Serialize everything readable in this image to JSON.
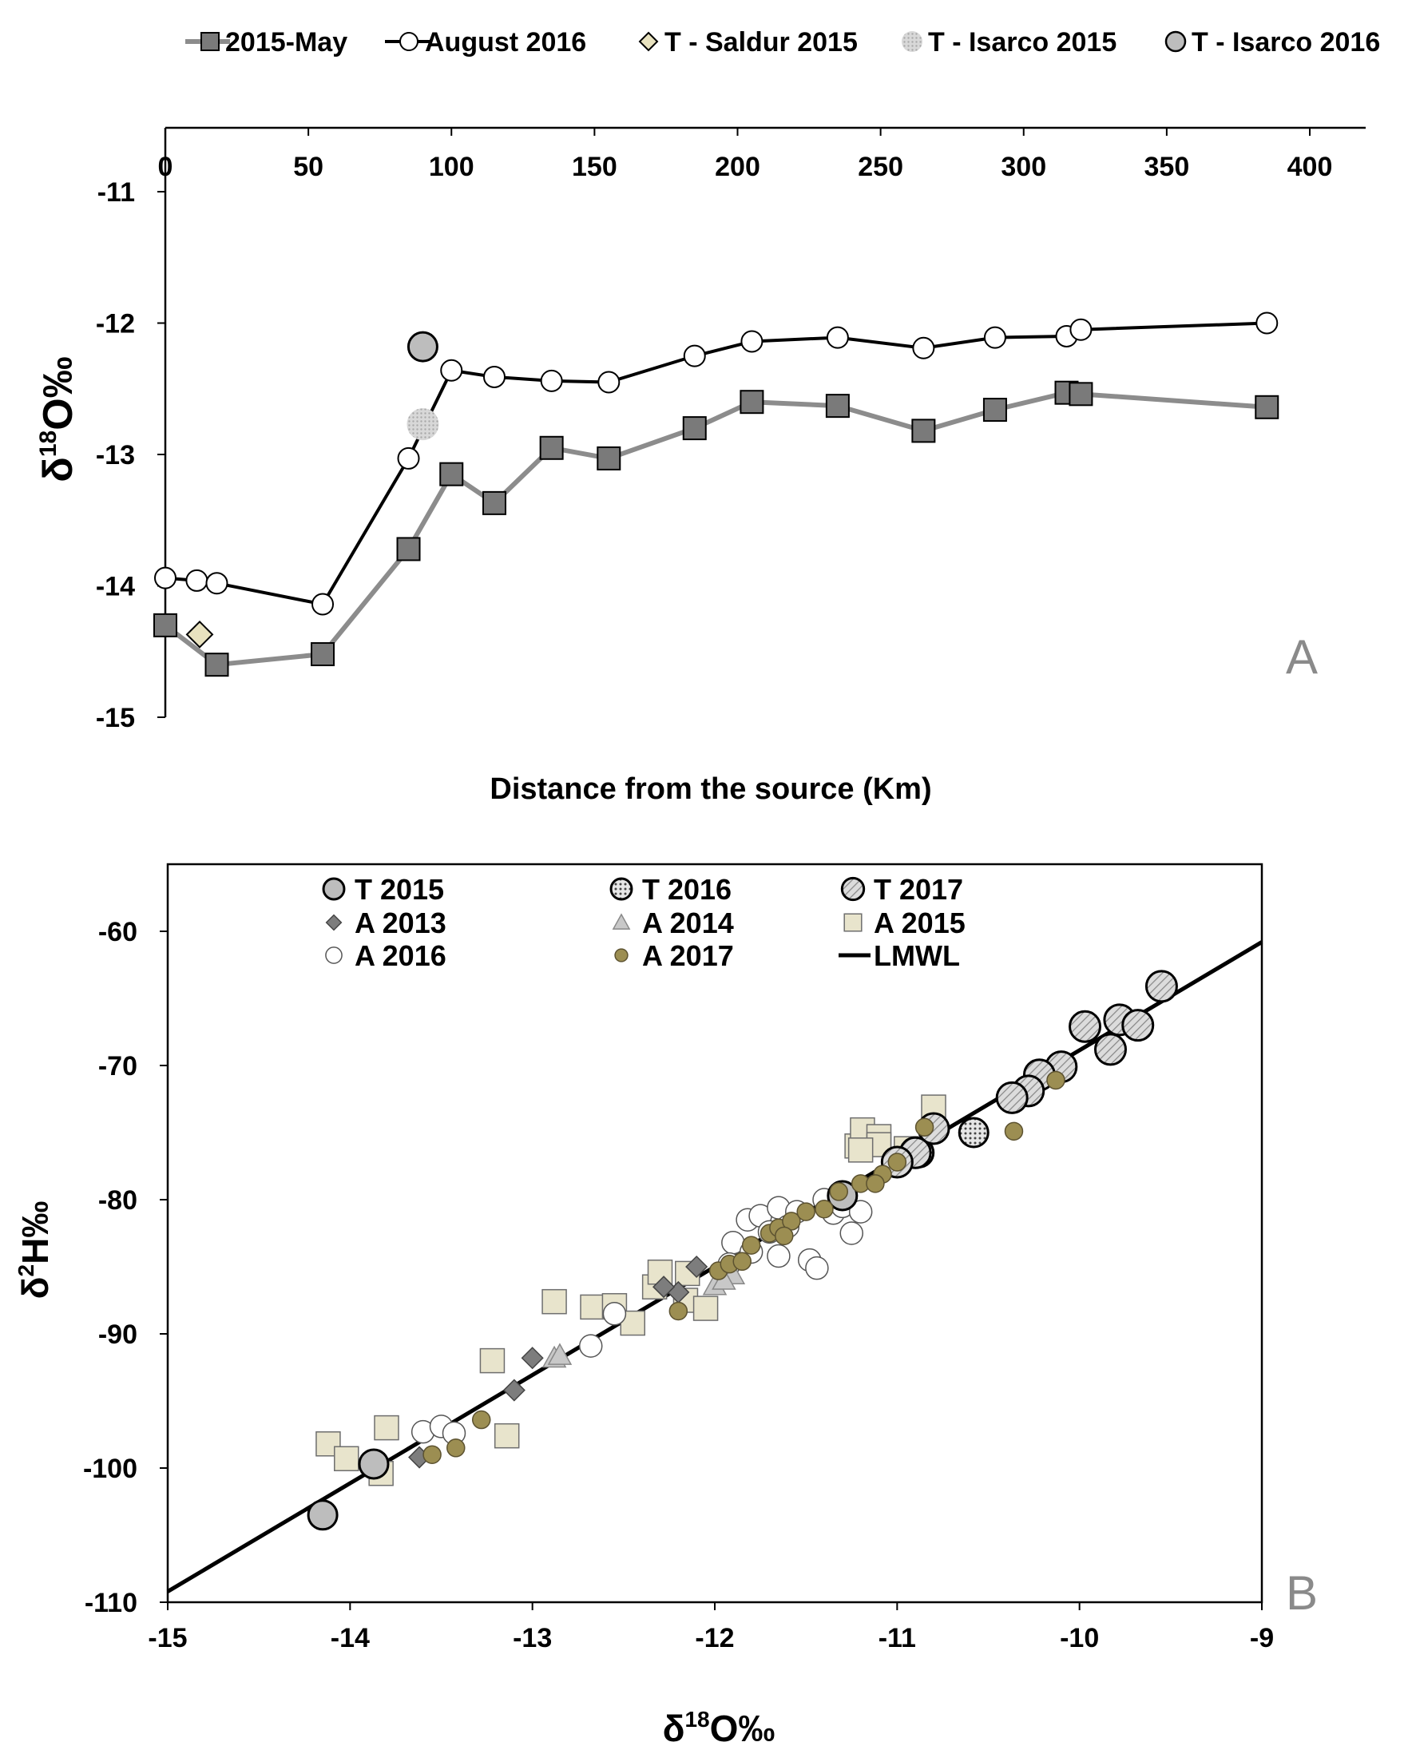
{
  "chart_data": [
    {
      "type": "line",
      "panel_label": "A",
      "title": "",
      "xlabel": "Distance from the source (Km)",
      "ylabel_main": "δ",
      "ylabel_sup": "18",
      "ylabel_rest": "O‰",
      "xlim": [
        0,
        400
      ],
      "ylim": [
        -15,
        -10.6
      ],
      "xticks": [
        0,
        50,
        100,
        150,
        200,
        250,
        300,
        350,
        400
      ],
      "yticks": [
        -15,
        -14,
        -13,
        -12,
        -11
      ],
      "x_axis_position": "top",
      "legend": [
        {
          "label": "2015-May",
          "marker": "square-line",
          "color": "#7a7a7a"
        },
        {
          "label": "August 2016",
          "marker": "circle-line",
          "color": "#000000"
        },
        {
          "label": "T - Saldur 2015",
          "marker": "diamond",
          "color": "#e8e2bf"
        },
        {
          "label": "T - Isarco 2015",
          "marker": "circle-dotted",
          "color": "#c8c8c8"
        },
        {
          "label": "T - Isarco 2016",
          "marker": "circle",
          "color": "#bdbdbd"
        }
      ],
      "series": [
        {
          "name": "2015-May",
          "x": [
            0,
            18,
            55,
            85,
            100,
            115,
            135,
            155,
            185,
            205,
            235,
            265,
            290,
            315,
            320,
            385
          ],
          "y": [
            -14.3,
            -14.6,
            -14.52,
            -13.72,
            -13.15,
            -13.37,
            -12.95,
            -13.03,
            -12.8,
            -12.6,
            -12.63,
            -12.82,
            -12.66,
            -12.53,
            -12.54,
            -12.64
          ]
        },
        {
          "name": "August 2016",
          "x": [
            0,
            11,
            18,
            55,
            85,
            100,
            115,
            135,
            155,
            185,
            205,
            235,
            265,
            290,
            315,
            320,
            385
          ],
          "y": [
            -13.94,
            -13.96,
            -13.98,
            -14.14,
            -13.03,
            -12.36,
            -12.41,
            -12.44,
            -12.45,
            -12.25,
            -12.14,
            -12.11,
            -12.19,
            -12.11,
            -12.1,
            -12.05,
            -12.0
          ]
        },
        {
          "name": "T - Saldur 2015",
          "x": [
            12
          ],
          "y": [
            -14.37
          ]
        },
        {
          "name": "T - Isarco 2015",
          "x": [
            90
          ],
          "y": [
            -12.77
          ]
        },
        {
          "name": "T - Isarco 2016",
          "x": [
            90
          ],
          "y": [
            -12.18
          ]
        }
      ]
    },
    {
      "type": "scatter",
      "panel_label": "B",
      "title": "",
      "xlabel_main": "δ",
      "xlabel_sup": "18",
      "xlabel_rest": "O‰",
      "ylabel_main": "δ",
      "ylabel_sup": "2",
      "ylabel_rest": "H‰",
      "xlim": [
        -15,
        -9
      ],
      "ylim": [
        -110,
        -55
      ],
      "xticks": [
        -15,
        -14,
        -13,
        -12,
        -11,
        -10,
        -9
      ],
      "yticks": [
        -110,
        -100,
        -90,
        -80,
        -70,
        -60
      ],
      "legend": [
        {
          "label": "T 2015",
          "marker": "big-circle-gray"
        },
        {
          "label": "T 2016",
          "marker": "big-circle-dotted"
        },
        {
          "label": "T 2017",
          "marker": "big-circle-hatched"
        },
        {
          "label": "A 2013",
          "marker": "diamond-gray"
        },
        {
          "label": "A 2014",
          "marker": "triangle-gray"
        },
        {
          "label": "A 2015",
          "marker": "square-beige"
        },
        {
          "label": "A 2016",
          "marker": "circle-white"
        },
        {
          "label": "A 2017",
          "marker": "circle-olive"
        },
        {
          "label": "LMWL",
          "marker": "line"
        }
      ],
      "lmwl": {
        "x": [
          -15,
          -9
        ],
        "y": [
          -109.2,
          -60.8
        ]
      },
      "series": [
        {
          "name": "T 2015",
          "points": [
            [
              -14.15,
              -103.5
            ],
            [
              -13.87,
              -99.7
            ],
            [
              -11.3,
              -79.7
            ],
            [
              -11.0,
              -77.2
            ]
          ]
        },
        {
          "name": "T 2016",
          "points": [
            [
              -10.58,
              -75.0
            ],
            [
              -10.88,
              -76.5
            ]
          ]
        },
        {
          "name": "T 2017",
          "points": [
            [
              -9.55,
              -64.1
            ],
            [
              -9.78,
              -66.6
            ],
            [
              -9.68,
              -67.0
            ],
            [
              -9.97,
              -67.1
            ],
            [
              -9.83,
              -68.8
            ],
            [
              -10.1,
              -70.1
            ],
            [
              -10.22,
              -70.7
            ],
            [
              -10.28,
              -71.9
            ],
            [
              -10.37,
              -72.4
            ],
            [
              -10.8,
              -74.7
            ],
            [
              -10.9,
              -76.5
            ],
            [
              -11.0,
              -77.2
            ]
          ]
        },
        {
          "name": "A 2013",
          "points": [
            [
              -13.62,
              -99.2
            ],
            [
              -13.1,
              -94.2
            ],
            [
              -13.0,
              -91.8
            ],
            [
              -12.2,
              -86.9
            ],
            [
              -12.1,
              -85.0
            ],
            [
              -12.28,
              -86.5
            ]
          ]
        },
        {
          "name": "A 2014",
          "points": [
            [
              -12.88,
              -91.8
            ],
            [
              -12.85,
              -91.6
            ],
            [
              -12.0,
              -86.4
            ],
            [
              -11.9,
              -85.6
            ],
            [
              -11.95,
              -86.0
            ]
          ]
        },
        {
          "name": "A 2015",
          "points": [
            [
              -14.12,
              -98.2
            ],
            [
              -14.02,
              -99.3
            ],
            [
              -13.8,
              -97.0
            ],
            [
              -13.83,
              -100.4
            ],
            [
              -13.22,
              -92.0
            ],
            [
              -13.14,
              -97.6
            ],
            [
              -12.88,
              -87.6
            ],
            [
              -12.67,
              -88.0
            ],
            [
              -12.55,
              -87.9
            ],
            [
              -12.45,
              -89.2
            ],
            [
              -12.33,
              -86.5
            ],
            [
              -12.3,
              -85.4
            ],
            [
              -12.16,
              -87.5
            ],
            [
              -12.15,
              -85.5
            ],
            [
              -12.05,
              -88.1
            ],
            [
              -11.22,
              -76.0
            ],
            [
              -11.19,
              -74.8
            ],
            [
              -11.1,
              -75.3
            ],
            [
              -11.1,
              -75.9
            ],
            [
              -10.95,
              -76.2
            ],
            [
              -10.8,
              -73.1
            ],
            [
              -11.2,
              -76.3
            ]
          ]
        },
        {
          "name": "A 2016",
          "points": [
            [
              -13.6,
              -97.3
            ],
            [
              -13.5,
              -96.9
            ],
            [
              -13.43,
              -97.4
            ],
            [
              -12.68,
              -90.9
            ],
            [
              -12.55,
              -88.5
            ],
            [
              -11.9,
              -83.2
            ],
            [
              -11.82,
              -81.5
            ],
            [
              -11.75,
              -81.2
            ],
            [
              -11.7,
              -82.4
            ],
            [
              -11.65,
              -80.6
            ],
            [
              -11.6,
              -82.0
            ],
            [
              -11.55,
              -80.9
            ],
            [
              -11.48,
              -84.5
            ],
            [
              -11.44,
              -85.1
            ],
            [
              -11.4,
              -80.0
            ],
            [
              -11.35,
              -81.0
            ],
            [
              -11.3,
              -80.5
            ],
            [
              -11.25,
              -82.5
            ],
            [
              -11.2,
              -80.9
            ],
            [
              -11.92,
              -84.8
            ],
            [
              -11.65,
              -84.2
            ],
            [
              -11.8,
              -83.9
            ]
          ]
        },
        {
          "name": "A 2017",
          "points": [
            [
              -13.55,
              -99.0
            ],
            [
              -13.42,
              -98.5
            ],
            [
              -13.28,
              -96.4
            ],
            [
              -12.2,
              -88.3
            ],
            [
              -11.98,
              -85.3
            ],
            [
              -11.92,
              -84.8
            ],
            [
              -11.85,
              -84.6
            ],
            [
              -11.8,
              -83.4
            ],
            [
              -11.7,
              -82.5
            ],
            [
              -11.65,
              -82.1
            ],
            [
              -11.58,
              -81.6
            ],
            [
              -11.5,
              -80.9
            ],
            [
              -11.4,
              -80.7
            ],
            [
              -11.32,
              -79.4
            ],
            [
              -11.2,
              -78.8
            ],
            [
              -11.08,
              -78.1
            ],
            [
              -11.0,
              -77.2
            ],
            [
              -10.85,
              -74.6
            ],
            [
              -10.36,
              -74.9
            ],
            [
              -10.13,
              -71.1
            ],
            [
              -11.12,
              -78.8
            ],
            [
              -11.62,
              -82.7
            ]
          ]
        }
      ]
    }
  ]
}
